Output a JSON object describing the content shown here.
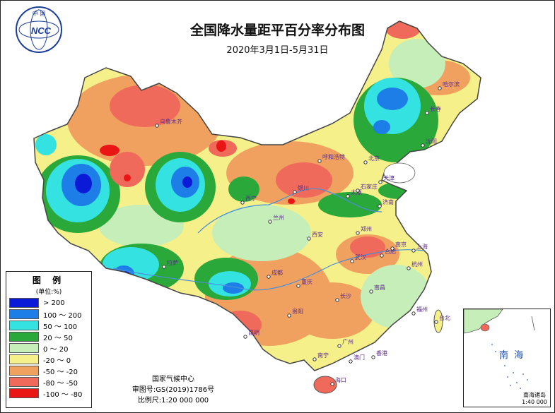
{
  "header": {
    "title": "全国降水量距平百分率分布图",
    "subtitle": "2020年3月1日-5月31日"
  },
  "logo": {
    "top_text": "中  国",
    "mark": "NCC"
  },
  "legend": {
    "title": "图 例",
    "unit": "(单位:%)",
    "items": [
      {
        "label": "> 200",
        "color": "#0a1ad6"
      },
      {
        "label": "100 ～ 200",
        "color": "#1e7ee8"
      },
      {
        "label": "50 ～ 100",
        "color": "#35e2e2"
      },
      {
        "label": "20 ～ 50",
        "color": "#2aa83a"
      },
      {
        "label": "0 ～ 20",
        "color": "#c5eeb8"
      },
      {
        "label": "-20 ～ 0",
        "color": "#f6f08a"
      },
      {
        "label": "-50 ～ -20",
        "color": "#f0a160"
      },
      {
        "label": "-80 ～ -50",
        "color": "#ef6a5a"
      },
      {
        "label": "-100 ～ -80",
        "color": "#ea1515"
      }
    ]
  },
  "credits": {
    "agency": "国家气候中心",
    "review_number": "审图号:GS(2019)1786号",
    "scale": "比例尺:1:20 000 000"
  },
  "inset": {
    "sea_label": "南 海",
    "caption_line1": "南海诸岛",
    "caption_line2": "1:40 000 000"
  },
  "cities": [
    {
      "name": "乌鲁木齐"
    },
    {
      "name": "拉萨"
    },
    {
      "name": "西宁"
    },
    {
      "name": "兰州"
    },
    {
      "name": "银川"
    },
    {
      "name": "呼和浩特"
    },
    {
      "name": "哈尔滨"
    },
    {
      "name": "长春"
    },
    {
      "name": "沈阳"
    },
    {
      "name": "北京"
    },
    {
      "name": "天津"
    },
    {
      "name": "太原"
    },
    {
      "name": "石家庄"
    },
    {
      "name": "济南"
    },
    {
      "name": "郑州"
    },
    {
      "name": "西安"
    },
    {
      "name": "成都"
    },
    {
      "name": "重庆"
    },
    {
      "name": "武汉"
    },
    {
      "name": "合肥"
    },
    {
      "name": "南京"
    },
    {
      "name": "上海"
    },
    {
      "name": "杭州"
    },
    {
      "name": "南昌"
    },
    {
      "name": "长沙"
    },
    {
      "name": "福州"
    },
    {
      "name": "台北"
    },
    {
      "name": "贵阳"
    },
    {
      "name": "昆明"
    },
    {
      "name": "广州"
    },
    {
      "name": "香港"
    },
    {
      "name": "澳门"
    },
    {
      "name": "南宁"
    },
    {
      "name": "海口"
    }
  ]
}
